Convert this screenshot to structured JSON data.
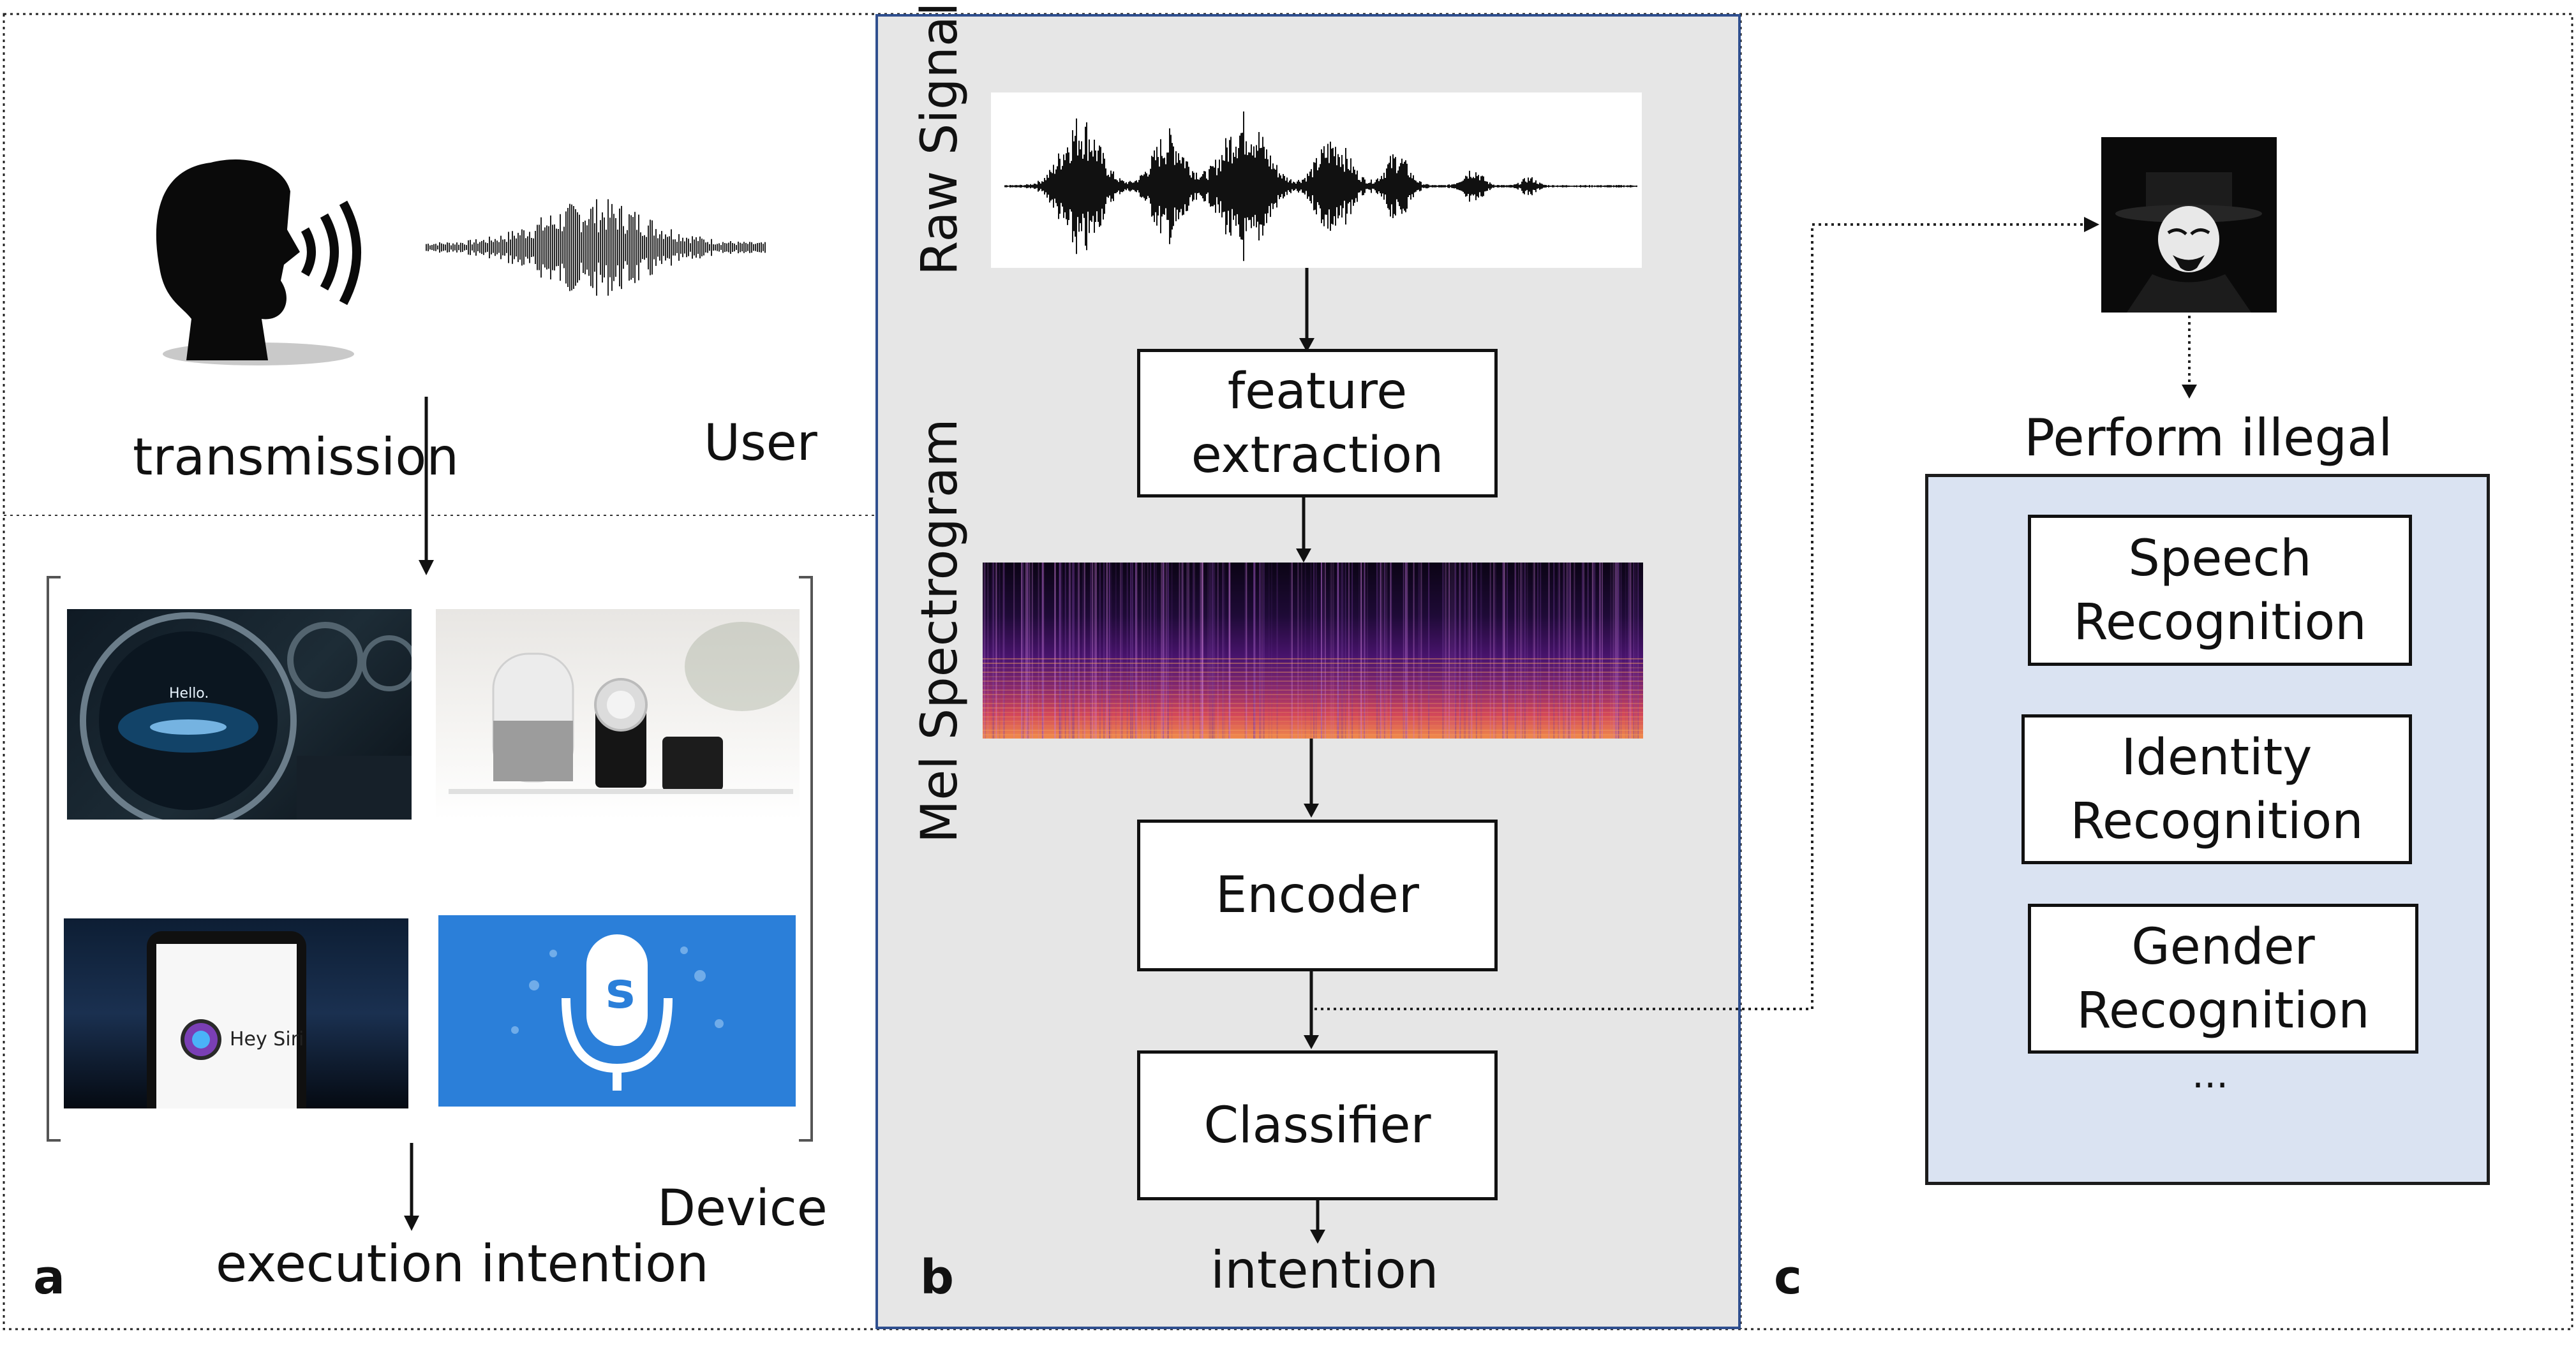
{
  "panels": {
    "a": {
      "letter": "a",
      "transmission": "transmission",
      "user": "User",
      "device": "Device",
      "execution": "execution intention",
      "phone_text": "Hey Siri",
      "car_screen_text": "Hello."
    },
    "b": {
      "letter": "b",
      "raw_signal": "Raw Signal",
      "mel": "Mel Spectrogram",
      "feature": [
        "feature",
        "extraction"
      ],
      "encoder": "Encoder",
      "classifier": "Classifier",
      "intention": "intention"
    },
    "c": {
      "letter": "c",
      "perform": "Perform illegal",
      "speech": [
        "Speech",
        "Recognition"
      ],
      "identity": [
        "Identity",
        "Recognition"
      ],
      "gender": [
        "Gender",
        "Recognition"
      ],
      "ellipsis": "..."
    }
  },
  "colors": {
    "panel_b_bg": "#e6e6e6",
    "panel_b_border": "#2f4f8f",
    "panel_c_box": "#dae3f2",
    "panel_c_border": "#1c1c1c",
    "siri_blue": "#2b7fd9"
  },
  "icons": [
    "speaking-head-icon",
    "hacker-icon",
    "microphone-icon"
  ]
}
